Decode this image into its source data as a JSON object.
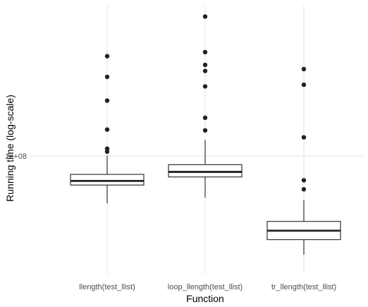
{
  "chart_data": {
    "type": "box",
    "xlabel": "Function",
    "ylabel": "Running time (log-scale)",
    "y_scale": "log10",
    "y_ticks": [
      {
        "value": 100000000,
        "label": "1e+08"
      }
    ],
    "ylim": [
      33000000,
      410000000
    ],
    "grid": true,
    "categories": [
      "llength(test_llist)",
      "loop_llength(test_llist)",
      "tr_llength(test_llist)"
    ],
    "boxes": [
      {
        "category": "llength(test_llist)",
        "whisker_low": 64000000,
        "q1": 76000000,
        "median": 79000000,
        "q3": 84000000,
        "whisker_high": 100000000,
        "outliers": [
          104000000,
          107000000,
          128000000,
          168000000,
          210000000,
          255000000
        ]
      },
      {
        "category": "loop_llength(test_llist)",
        "whisker_low": 67500000,
        "q1": 82000000,
        "median": 86000000,
        "q3": 92000000,
        "whisker_high": 116000000,
        "outliers": [
          127000000,
          143000000,
          192000000,
          222000000,
          235000000,
          265000000,
          370000000
        ]
      },
      {
        "category": "tr_llength(test_llist)",
        "whisker_low": 39500000,
        "q1": 45500000,
        "median": 49500000,
        "q3": 54000000,
        "whisker_high": 66000000,
        "outliers": [
          73000000,
          79500000,
          119000000,
          195000000,
          226000000
        ]
      }
    ]
  }
}
